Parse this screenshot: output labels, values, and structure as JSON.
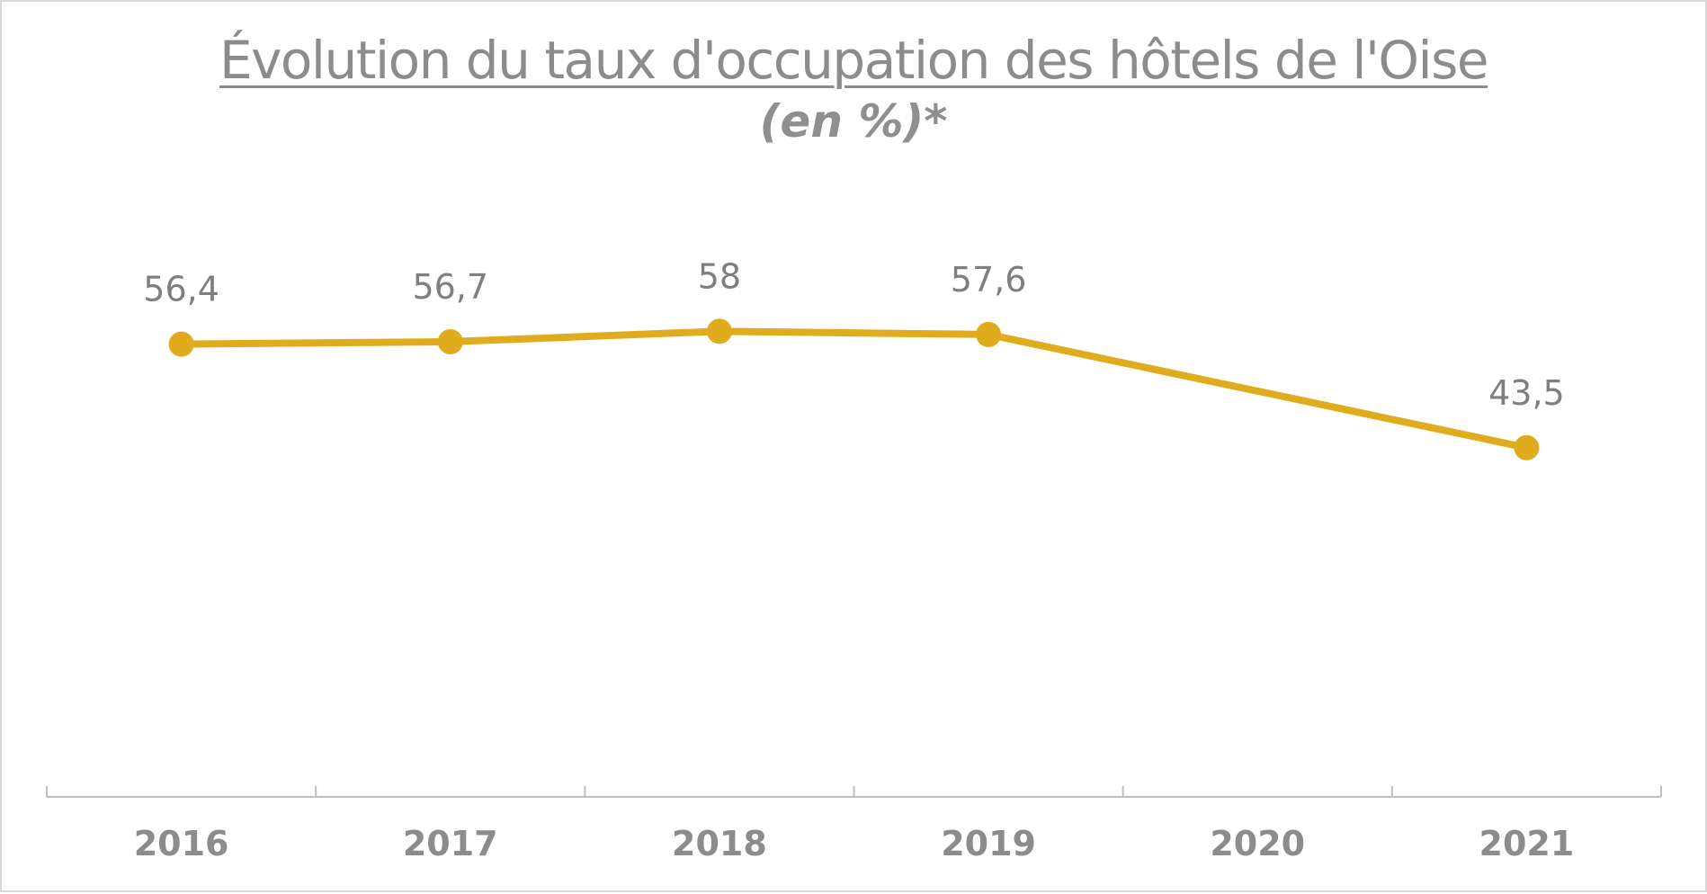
{
  "chart_title": "Évolution du taux d'occupation des hôtels de l'Oise",
  "chart_subtitle": "(en %)*",
  "colors": {
    "line": "#E0AC1D",
    "text": "#8C8C8C",
    "axis": "#BFBFBF"
  },
  "chart_data": {
    "type": "line",
    "title": "Évolution du taux d'occupation des hôtels de l'Oise",
    "subtitle": "(en %)*",
    "xlabel": "",
    "ylabel": "",
    "categories": [
      "2016",
      "2017",
      "2018",
      "2019",
      "2020",
      "2021"
    ],
    "series": [
      {
        "values": [
          56.4,
          56.7,
          58,
          57.6,
          null,
          43.5
        ],
        "labels": [
          "56,4",
          "56,7",
          "58",
          "57,6",
          "",
          "43,5"
        ]
      }
    ],
    "ylim": [
      0,
      80
    ],
    "grid": false,
    "legend": "none"
  }
}
